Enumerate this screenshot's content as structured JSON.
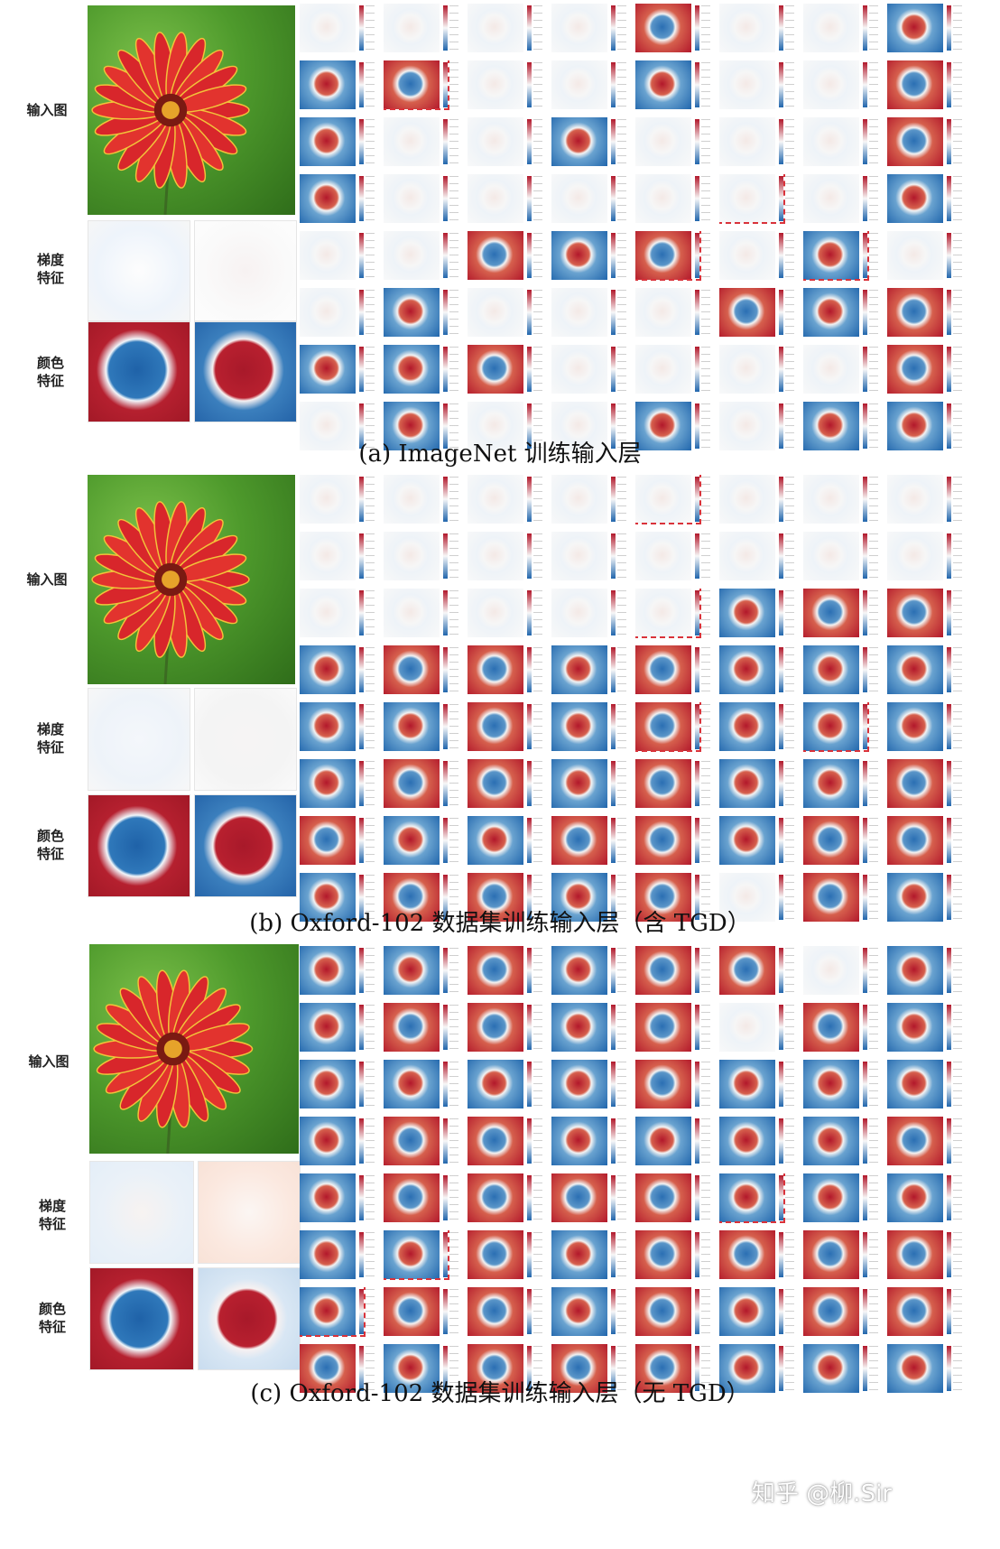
{
  "figure": {
    "panels": [
      {
        "id": "a",
        "caption": "(a) ImageNet 训练输入层",
        "labels": {
          "input": "输入图",
          "gradient": [
            "梯度",
            "特征"
          ],
          "color": [
            "颜色",
            "特征"
          ]
        },
        "maps": [
          "bw",
          "bw",
          "bw",
          "bw",
          "red",
          "bw",
          "bw",
          "blue",
          "blue",
          "red",
          "bw",
          "bw",
          "blue",
          "bw",
          "bw",
          "red",
          "blue",
          "bw",
          "bw",
          "blue",
          "bw",
          "bw",
          "bw",
          "red",
          "blue",
          "bw",
          "bw",
          "bw",
          "bw",
          "bw",
          "bw",
          "blue",
          "bw",
          "bw",
          "red",
          "blue",
          "red",
          "bw",
          "blue",
          "bw",
          "bw",
          "blue",
          "bw",
          "bw",
          "bw",
          "red",
          "blue",
          "red",
          "blue",
          "blue",
          "red",
          "bw",
          "bw",
          "bw",
          "bw",
          "red",
          "bw",
          "blue",
          "bw",
          "bw",
          "blue",
          "bw",
          "blue",
          "blue"
        ],
        "highlights": [
          9,
          29,
          36,
          38
        ]
      },
      {
        "id": "b",
        "caption": "(b) Oxford-102 数据集训练输入层（含 TGD）",
        "labels": {
          "input": "输入图",
          "gradient": [
            "梯度",
            "特征"
          ],
          "color": [
            "颜色",
            "特征"
          ]
        },
        "maps": [
          "bw",
          "bw",
          "bw",
          "bw",
          "bw",
          "bw",
          "bw",
          "bw",
          "bw",
          "bw",
          "bw",
          "bw",
          "bw",
          "bw",
          "bw",
          "bw",
          "bw",
          "bw",
          "bw",
          "bw",
          "bw",
          "blue",
          "red",
          "red",
          "blue",
          "red",
          "red",
          "blue",
          "red",
          "blue",
          "blue",
          "blue",
          "blue",
          "blue",
          "red",
          "blue",
          "red",
          "blue",
          "blue",
          "blue",
          "blue",
          "red",
          "red",
          "blue",
          "red",
          "blue",
          "blue",
          "red",
          "red",
          "blue",
          "blue",
          "red",
          "red",
          "blue",
          "red",
          "red",
          "blue",
          "red",
          "red",
          "blue",
          "red",
          "bw",
          "red",
          "blue"
        ],
        "highlights": [
          4,
          20,
          36,
          38
        ]
      },
      {
        "id": "c",
        "caption": "(c) Oxford-102 数据集训练输入层（无 TGD）",
        "labels": {
          "input": "输入图",
          "gradient": [
            "梯度",
            "特征"
          ],
          "color": [
            "颜色",
            "特征"
          ]
        },
        "maps": [
          "blue",
          "blue",
          "red",
          "blue",
          "red",
          "red",
          "bw",
          "blue",
          "blue",
          "red",
          "red",
          "blue",
          "red",
          "bw",
          "red",
          "blue",
          "blue",
          "blue",
          "blue",
          "blue",
          "red",
          "blue",
          "blue",
          "blue",
          "blue",
          "red",
          "red",
          "blue",
          "blue",
          "blue",
          "blue",
          "red",
          "blue",
          "red",
          "red",
          "red",
          "red",
          "blue",
          "blue",
          "blue",
          "blue",
          "blue",
          "red",
          "blue",
          "red",
          "red",
          "red",
          "red",
          "blue",
          "red",
          "red",
          "blue",
          "red",
          "blue",
          "red",
          "red",
          "red",
          "blue",
          "red",
          "red",
          "red",
          "blue",
          "blue",
          "blue"
        ],
        "highlights": [
          37,
          41,
          48
        ]
      }
    ]
  },
  "watermark": "知乎 @柳.Sir",
  "colors": {
    "red": "#b2182b",
    "blue": "#2166ac",
    "highlight": "#d9323a"
  }
}
